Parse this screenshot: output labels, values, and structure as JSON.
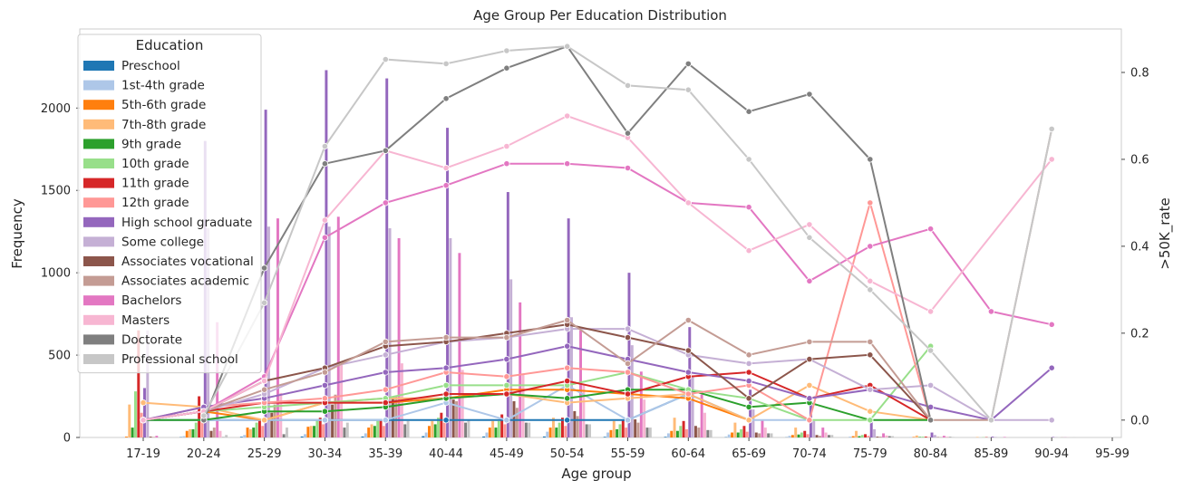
{
  "chart_data": {
    "type": "bar+line",
    "title": "Age Group Per Education Distribution",
    "xlabel": "Age group",
    "ylabel": "Frequency",
    "y2label": ">50K_rate",
    "categories": [
      "17-19",
      "20-24",
      "25-29",
      "30-34",
      "35-39",
      "40-44",
      "45-49",
      "50-54",
      "55-59",
      "60-64",
      "65-69",
      "70-74",
      "75-79",
      "80-84",
      "85-89",
      "90-94",
      "95-99"
    ],
    "ylim": [
      0,
      2480
    ],
    "y_ticks": [
      0,
      500,
      1000,
      1500,
      2000
    ],
    "y2lim": [
      -0.04,
      0.9
    ],
    "y2_ticks": [
      0.0,
      0.2,
      0.4,
      0.6,
      0.8
    ],
    "grid": false,
    "legend": {
      "title": "Education",
      "placement": "top-left"
    },
    "series": [
      {
        "name": "Preschool",
        "color": "#1f77b4",
        "bars": [
          0,
          2,
          4,
          6,
          6,
          8,
          6,
          6,
          4,
          4,
          2,
          1,
          0,
          0,
          0,
          0,
          0
        ],
        "rate": [
          0,
          0,
          0,
          0,
          0,
          0,
          0,
          0,
          0,
          0.06,
          0,
          null,
          null,
          null,
          null,
          null,
          null
        ]
      },
      {
        "name": "1st-4th grade",
        "color": "#aec7e8",
        "bars": [
          2,
          8,
          15,
          20,
          25,
          30,
          30,
          35,
          30,
          25,
          18,
          10,
          5,
          2,
          0,
          0,
          0
        ],
        "rate": [
          0,
          0,
          0,
          0,
          0,
          0.04,
          0,
          0.08,
          0,
          0.06,
          0,
          0,
          null,
          null,
          null,
          null,
          null
        ]
      },
      {
        "name": "5th-6th grade",
        "color": "#ff7f0e",
        "bars": [
          5,
          40,
          60,
          65,
          60,
          70,
          60,
          60,
          45,
          40,
          30,
          15,
          8,
          3,
          0,
          0,
          0
        ],
        "rate": [
          0.0,
          0.02,
          0.0,
          0.04,
          0.04,
          0.05,
          0.07,
          0.07,
          0.06,
          0.05,
          0,
          null,
          null,
          null,
          null,
          null,
          null
        ]
      },
      {
        "name": "7th-8th grade",
        "color": "#ffbb78",
        "bars": [
          200,
          50,
          50,
          70,
          80,
          100,
          100,
          120,
          100,
          120,
          90,
          60,
          40,
          12,
          3,
          0,
          0
        ],
        "rate": [
          0.04,
          0.03,
          0.0,
          0.04,
          0.05,
          0.05,
          0.06,
          0.04,
          0.05,
          0.06,
          0.0,
          0.08,
          0.02,
          0.0,
          null,
          null,
          null
        ]
      },
      {
        "name": "9th grade",
        "color": "#2ca02c",
        "bars": [
          60,
          50,
          60,
          70,
          70,
          80,
          60,
          60,
          50,
          40,
          30,
          18,
          8,
          3,
          0,
          0,
          0
        ],
        "rate": [
          0.0,
          0.0,
          0.02,
          0.02,
          0.03,
          0.05,
          0.06,
          0.05,
          0.07,
          0.07,
          0.03,
          0.04,
          0.0,
          0.0,
          null,
          null,
          null
        ]
      },
      {
        "name": "10th grade",
        "color": "#98df8a",
        "bars": [
          280,
          90,
          90,
          110,
          100,
          120,
          100,
          90,
          80,
          70,
          50,
          30,
          15,
          5,
          2,
          0,
          0
        ],
        "rate": [
          0.0,
          0.02,
          0.03,
          0.04,
          0.05,
          0.08,
          0.08,
          0.08,
          0.11,
          0.07,
          0.05,
          0.0,
          0.0,
          0.17,
          null,
          null,
          null
        ]
      },
      {
        "name": "11th grade",
        "color": "#d62728",
        "bars": [
          650,
          250,
          110,
          120,
          110,
          150,
          140,
          120,
          110,
          100,
          70,
          40,
          20,
          5,
          2,
          0,
          0
        ],
        "rate": [
          0.0,
          0.02,
          0.04,
          0.04,
          0.04,
          0.06,
          0.06,
          0.09,
          0.06,
          0.1,
          0.11,
          0.05,
          0.08,
          0.0,
          null,
          null,
          null
        ]
      },
      {
        "name": "12th grade",
        "color": "#ff9896",
        "bars": [
          150,
          170,
          70,
          80,
          70,
          90,
          80,
          70,
          60,
          50,
          35,
          20,
          10,
          3,
          0,
          0,
          0
        ],
        "rate": [
          0.0,
          0.03,
          0.04,
          0.05,
          0.07,
          0.11,
          0.1,
          0.12,
          0.11,
          0.06,
          0.08,
          0.0,
          0.5,
          0.0,
          null,
          null,
          null
        ]
      },
      {
        "name": "High school graduate",
        "color": "#9467bd",
        "bars": [
          300,
          1800,
          1990,
          2230,
          2180,
          1880,
          1490,
          1330,
          1000,
          670,
          290,
          200,
          100,
          30,
          5,
          3,
          0
        ],
        "rate": [
          0.0,
          0.03,
          0.05,
          0.08,
          0.11,
          0.12,
          0.14,
          0.17,
          0.14,
          0.11,
          0.09,
          0.05,
          0.07,
          0.03,
          0.0,
          0.12,
          null
        ]
      },
      {
        "name": "Some college",
        "color": "#c5b0d5",
        "bars": [
          650,
          1270,
          1280,
          1280,
          1270,
          1210,
          960,
          730,
          560,
          370,
          170,
          100,
          50,
          15,
          3,
          2,
          0
        ],
        "rate": [
          0.0,
          0.02,
          0.06,
          0.12,
          0.15,
          0.18,
          0.19,
          0.21,
          0.21,
          0.15,
          0.13,
          0.14,
          0.07,
          0.08,
          0.0,
          0.0,
          null
        ]
      },
      {
        "name": "Associates vocational",
        "color": "#8c564b",
        "bars": [
          5,
          40,
          150,
          200,
          250,
          230,
          220,
          160,
          110,
          70,
          30,
          15,
          5,
          2,
          0,
          0,
          0
        ],
        "rate": [
          0.0,
          0.02,
          0.09,
          0.12,
          0.17,
          0.18,
          0.2,
          0.22,
          0.19,
          0.16,
          0.05,
          0.14,
          0.15,
          0.0,
          null,
          null,
          null
        ]
      },
      {
        "name": "Associates academic",
        "color": "#c49c94",
        "bars": [
          3,
          60,
          200,
          260,
          250,
          220,
          180,
          130,
          90,
          60,
          25,
          10,
          5,
          2,
          0,
          1,
          0
        ],
        "rate": [
          0.0,
          0.02,
          0.07,
          0.11,
          0.18,
          0.19,
          0.19,
          0.23,
          0.13,
          0.23,
          0.15,
          0.18,
          0.18,
          0.0,
          0.0,
          0.67,
          null
        ]
      },
      {
        "name": "Bachelors",
        "color": "#e377c2",
        "bars": [
          10,
          700,
          1330,
          1340,
          1210,
          1120,
          820,
          650,
          400,
          260,
          110,
          60,
          25,
          10,
          3,
          1,
          0
        ],
        "rate": [
          0.0,
          0.02,
          0.1,
          0.42,
          0.5,
          0.54,
          0.59,
          0.59,
          0.58,
          0.5,
          0.49,
          0.32,
          0.4,
          0.44,
          0.25,
          0.22,
          null
        ]
      },
      {
        "name": "Masters",
        "color": "#f7b6d2",
        "bars": [
          0,
          40,
          270,
          440,
          450,
          410,
          380,
          320,
          230,
          150,
          60,
          30,
          12,
          5,
          1,
          1,
          0
        ],
        "rate": [
          0.0,
          0.02,
          0.09,
          0.46,
          0.62,
          0.58,
          0.63,
          0.7,
          0.65,
          0.5,
          0.39,
          0.45,
          0.32,
          0.25,
          null,
          0.6,
          null
        ]
      },
      {
        "name": "Doctorate",
        "color": "#7f7f7f",
        "bars": [
          0,
          2,
          20,
          60,
          80,
          90,
          90,
          80,
          60,
          45,
          25,
          15,
          8,
          3,
          0,
          0,
          0
        ],
        "rate": [
          null,
          0.0,
          0.35,
          0.59,
          0.62,
          0.74,
          0.81,
          0.86,
          0.66,
          0.82,
          0.71,
          0.75,
          0.6,
          0.0,
          null,
          null,
          null
        ]
      },
      {
        "name": "Professional school",
        "color": "#c7c7c7",
        "bars": [
          0,
          15,
          60,
          90,
          100,
          110,
          90,
          80,
          60,
          45,
          25,
          15,
          8,
          3,
          0,
          1,
          0
        ],
        "rate": [
          null,
          0.01,
          0.27,
          0.63,
          0.83,
          0.82,
          0.85,
          0.86,
          0.77,
          0.76,
          0.6,
          0.42,
          0.3,
          0.16,
          0.0,
          0.67,
          null
        ]
      }
    ]
  }
}
